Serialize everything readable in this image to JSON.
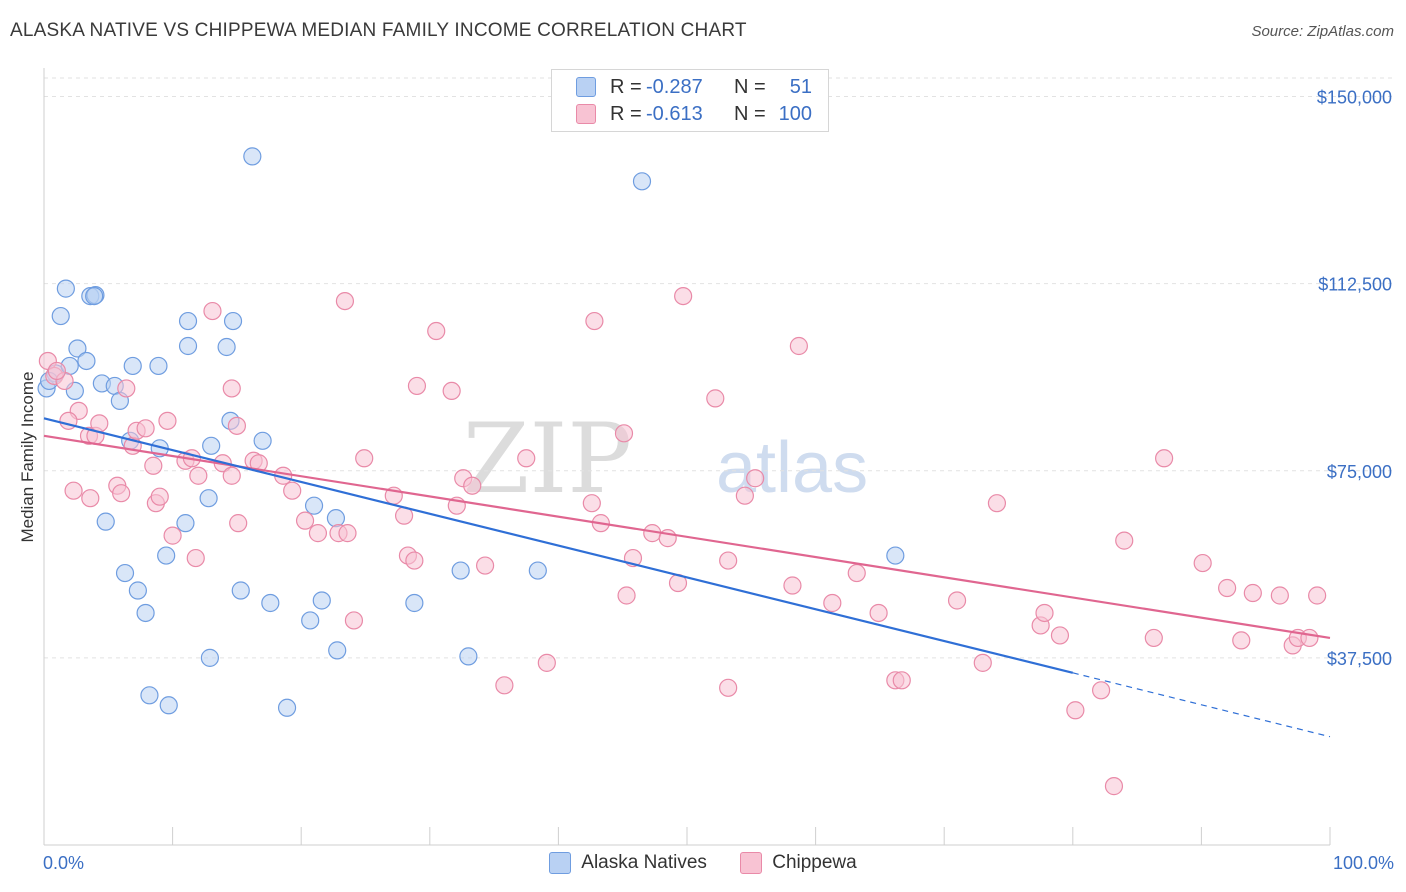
{
  "title": "ALASKA NATIVE VS CHIPPEWA MEDIAN FAMILY INCOME CORRELATION CHART",
  "source": "Source: ZipAtlas.com",
  "watermark": {
    "zip": "ZIP",
    "atlas": "atlas"
  },
  "legend_top": [
    {
      "key": "R =",
      "r": "-0.287",
      "nkey": "N =",
      "n": "51"
    },
    {
      "key": "R =",
      "r": "-0.613",
      "nkey": "N =",
      "n": "100"
    }
  ],
  "legend_bottom": [
    "Alaska Natives",
    "Chippewa"
  ],
  "colors": {
    "alaska_fill": "#b9d1f3",
    "alaska_stroke": "#6f9de0",
    "alaska_line": "#2f6fd6",
    "chippewa_fill": "#f8c3d3",
    "chippewa_stroke": "#e98aa8",
    "chippewa_line": "#e06690",
    "axis_text": "#3b6fc4",
    "grid": "#e2e2e2"
  },
  "chart_data": {
    "type": "scatter",
    "title": "ALASKA NATIVE VS CHIPPEWA MEDIAN FAMILY INCOME CORRELATION CHART",
    "xlabel": "",
    "ylabel": "Median Family Income",
    "x_ticks": [
      "0.0%",
      "100.0%"
    ],
    "y_ticks": [
      "$37,500",
      "$75,000",
      "$112,500",
      "$150,000"
    ],
    "xlim": [
      0,
      100
    ],
    "ylim": [
      0,
      155000
    ],
    "grid": "horizontal dashed",
    "series": [
      {
        "name": "Alaska Natives",
        "r": -0.287,
        "n": 51,
        "trend": {
          "x0": 0,
          "y0": 85500,
          "x1": 80,
          "y1": 34500,
          "dash_to_x": 100,
          "dash_to_y": 21700
        },
        "points": [
          [
            0.2,
            91500
          ],
          [
            0.9,
            94500
          ],
          [
            1.7,
            111500
          ],
          [
            1.3,
            106000
          ],
          [
            2.6,
            99500
          ],
          [
            3.3,
            97000
          ],
          [
            2.0,
            96000
          ],
          [
            2.4,
            91000
          ],
          [
            3.6,
            110000
          ],
          [
            4.0,
            110200
          ],
          [
            3.9,
            110000
          ],
          [
            4.5,
            92500
          ],
          [
            5.5,
            92000
          ],
          [
            5.9,
            89000
          ],
          [
            6.9,
            96000
          ],
          [
            8.9,
            96000
          ],
          [
            11.2,
            105000
          ],
          [
            11.2,
            100000
          ],
          [
            14.2,
            99800
          ],
          [
            14.7,
            105000
          ],
          [
            16.2,
            138000
          ],
          [
            14.5,
            85000
          ],
          [
            13.0,
            80000
          ],
          [
            9.0,
            79500
          ],
          [
            6.7,
            81000
          ],
          [
            17.0,
            81000
          ],
          [
            12.8,
            69500
          ],
          [
            21.0,
            68000
          ],
          [
            22.7,
            65500
          ],
          [
            11.0,
            64500
          ],
          [
            4.8,
            64800
          ],
          [
            9.5,
            58000
          ],
          [
            6.3,
            54500
          ],
          [
            7.3,
            51000
          ],
          [
            7.9,
            46500
          ],
          [
            15.3,
            51000
          ],
          [
            17.6,
            48500
          ],
          [
            21.6,
            49000
          ],
          [
            20.7,
            45000
          ],
          [
            28.8,
            48500
          ],
          [
            32.4,
            55000
          ],
          [
            46.5,
            133000
          ],
          [
            66.2,
            58000
          ],
          [
            12.9,
            37500
          ],
          [
            22.8,
            39000
          ],
          [
            33.0,
            37800
          ],
          [
            8.2,
            30000
          ],
          [
            9.7,
            28000
          ],
          [
            18.9,
            27500
          ],
          [
            38.4,
            55000
          ],
          [
            0.4,
            93000
          ]
        ]
      },
      {
        "name": "Chippewa",
        "r": -0.613,
        "n": 100,
        "trend": {
          "x0": 0,
          "y0": 82000,
          "x1": 100,
          "y1": 41500
        },
        "points": [
          [
            0.3,
            97000
          ],
          [
            0.8,
            94000
          ],
          [
            1.6,
            93000
          ],
          [
            2.7,
            87000
          ],
          [
            1.9,
            85000
          ],
          [
            3.5,
            82000
          ],
          [
            4.0,
            82000
          ],
          [
            6.4,
            91500
          ],
          [
            6.9,
            80000
          ],
          [
            7.2,
            83000
          ],
          [
            7.9,
            83500
          ],
          [
            9.6,
            85000
          ],
          [
            11.0,
            77000
          ],
          [
            8.5,
            76000
          ],
          [
            11.5,
            77500
          ],
          [
            12.0,
            74000
          ],
          [
            13.9,
            76500
          ],
          [
            14.6,
            74000
          ],
          [
            15.1,
            64500
          ],
          [
            14.6,
            91500
          ],
          [
            13.1,
            107000
          ],
          [
            16.3,
            77000
          ],
          [
            16.7,
            76500
          ],
          [
            18.6,
            74000
          ],
          [
            19.3,
            71000
          ],
          [
            20.3,
            65000
          ],
          [
            21.3,
            62500
          ],
          [
            22.9,
            62500
          ],
          [
            23.4,
            109000
          ],
          [
            23.6,
            62500
          ],
          [
            24.1,
            45000
          ],
          [
            24.9,
            77500
          ],
          [
            27.2,
            70000
          ],
          [
            28.0,
            66000
          ],
          [
            28.3,
            58000
          ],
          [
            28.8,
            57000
          ],
          [
            29.0,
            92000
          ],
          [
            30.5,
            103000
          ],
          [
            31.7,
            91000
          ],
          [
            32.1,
            68000
          ],
          [
            32.6,
            73500
          ],
          [
            33.3,
            72000
          ],
          [
            34.3,
            56000
          ],
          [
            35.8,
            32000
          ],
          [
            37.5,
            77500
          ],
          [
            39.1,
            36500
          ],
          [
            42.6,
            68500
          ],
          [
            42.8,
            105000
          ],
          [
            43.3,
            64500
          ],
          [
            45.1,
            82500
          ],
          [
            45.8,
            57500
          ],
          [
            45.3,
            50000
          ],
          [
            47.3,
            62500
          ],
          [
            48.5,
            61500
          ],
          [
            49.3,
            52500
          ],
          [
            49.7,
            110000
          ],
          [
            52.2,
            89500
          ],
          [
            53.2,
            57000
          ],
          [
            53.2,
            31500
          ],
          [
            54.5,
            70000
          ],
          [
            55.3,
            73500
          ],
          [
            58.2,
            52000
          ],
          [
            58.7,
            100000
          ],
          [
            61.3,
            48500
          ],
          [
            63.2,
            54500
          ],
          [
            64.9,
            46500
          ],
          [
            66.2,
            33000
          ],
          [
            66.7,
            33000
          ],
          [
            71.0,
            49000
          ],
          [
            73.0,
            36500
          ],
          [
            74.1,
            68500
          ],
          [
            77.5,
            44000
          ],
          [
            77.8,
            46500
          ],
          [
            79.0,
            42000
          ],
          [
            80.2,
            27000
          ],
          [
            82.2,
            31000
          ],
          [
            83.2,
            11800
          ],
          [
            84.0,
            61000
          ],
          [
            86.3,
            41500
          ],
          [
            87.1,
            77500
          ],
          [
            90.1,
            56500
          ],
          [
            92.0,
            51500
          ],
          [
            93.1,
            41000
          ],
          [
            94.0,
            50500
          ],
          [
            96.1,
            50000
          ],
          [
            97.1,
            40000
          ],
          [
            97.5,
            41500
          ],
          [
            98.4,
            41500
          ],
          [
            99.0,
            50000
          ],
          [
            2.3,
            71000
          ],
          [
            3.6,
            69500
          ],
          [
            5.7,
            72000
          ],
          [
            6.0,
            70500
          ],
          [
            8.7,
            68500
          ],
          [
            9.0,
            69800
          ],
          [
            10.0,
            62000
          ],
          [
            11.8,
            57500
          ],
          [
            15.0,
            84000
          ],
          [
            4.3,
            84500
          ],
          [
            1.0,
            95000
          ]
        ]
      }
    ]
  }
}
